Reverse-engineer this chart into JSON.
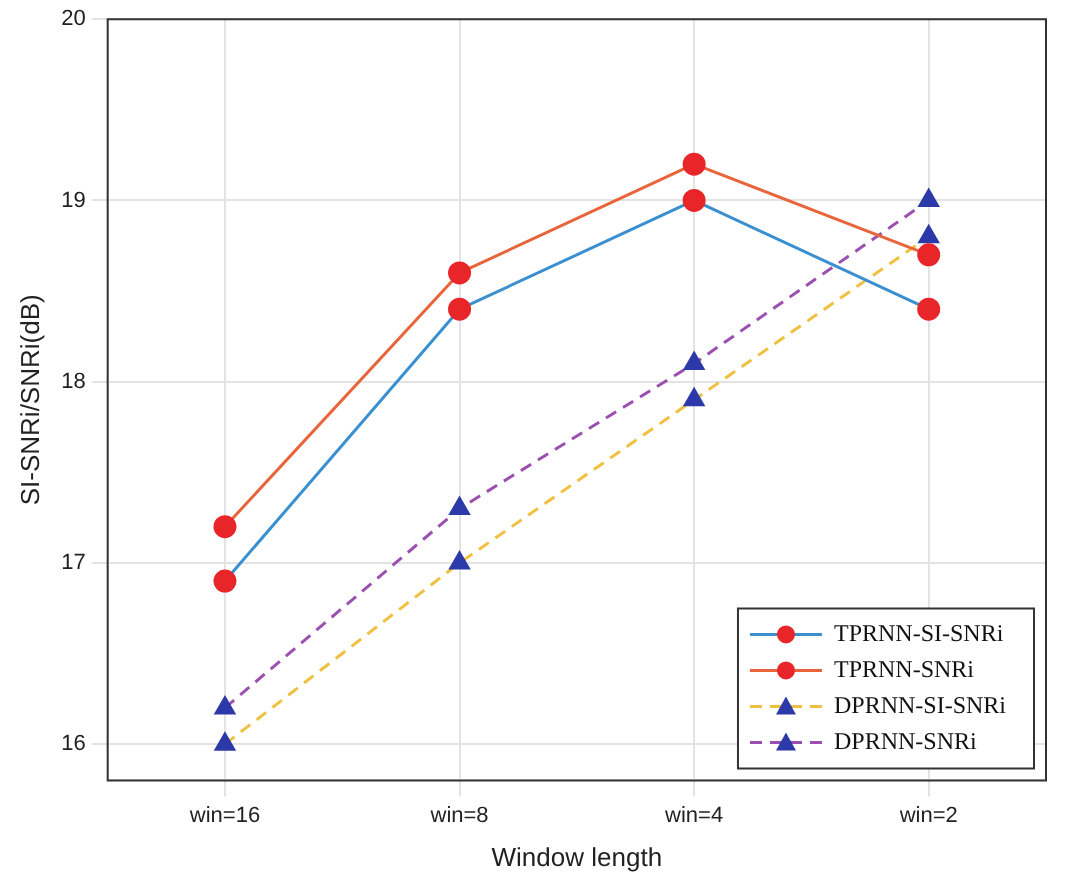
{
  "chart_data": {
    "type": "line",
    "xlabel": "Window length",
    "ylabel": "SI-SNRi/SNRi(dB)",
    "categories": [
      "win=16",
      "win=8",
      "win=4",
      "win=2"
    ],
    "ylim": [
      15.8,
      20
    ],
    "yticks": [
      16,
      17,
      18,
      19,
      20
    ],
    "grid": true,
    "legend": "bottom right",
    "series": [
      {
        "name": "TPRNN-SI-SNRi",
        "color": "#3a8fd0",
        "values": [
          16.9,
          18.4,
          19.0,
          18.4
        ],
        "marker": "circle",
        "line_style": "solid"
      },
      {
        "name": "TPRNN-SNRi",
        "color": "#e8643a",
        "values": [
          17.2,
          18.6,
          19.2,
          18.7
        ],
        "marker": "circle",
        "line_style": "solid"
      },
      {
        "name": "DPRNN-SI-SNRi",
        "color": "#f0c040",
        "values": [
          16.0,
          17.0,
          17.9,
          18.8
        ],
        "marker": "triangle",
        "line_style": "dashed"
      },
      {
        "name": "DPRNN-SNRi",
        "color": "#9b4fb0",
        "values": [
          16.2,
          17.3,
          18.1,
          19.0
        ],
        "marker": "triangle",
        "line_style": "dashed"
      }
    ]
  }
}
